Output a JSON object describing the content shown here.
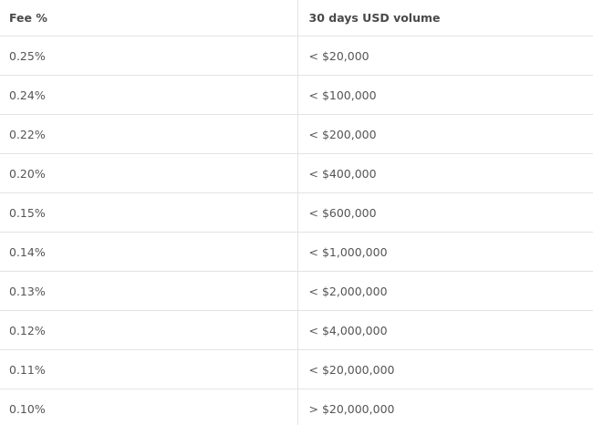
{
  "table": {
    "headers": [
      "Fee %",
      "30 days USD volume"
    ],
    "rows": [
      [
        "0.25%",
        "< $20,000"
      ],
      [
        "0.24%",
        "< $100,000"
      ],
      [
        "0.22%",
        "< $200,000"
      ],
      [
        "0.20%",
        "< $400,000"
      ],
      [
        "0.15%",
        "< $600,000"
      ],
      [
        "0.14%",
        "< $1,000,000"
      ],
      [
        "0.13%",
        "< $2,000,000"
      ],
      [
        "0.12%",
        "< $4,000,000"
      ],
      [
        "0.11%",
        "< $20,000,000"
      ],
      [
        "0.10%",
        "> $20,000,000"
      ]
    ]
  }
}
